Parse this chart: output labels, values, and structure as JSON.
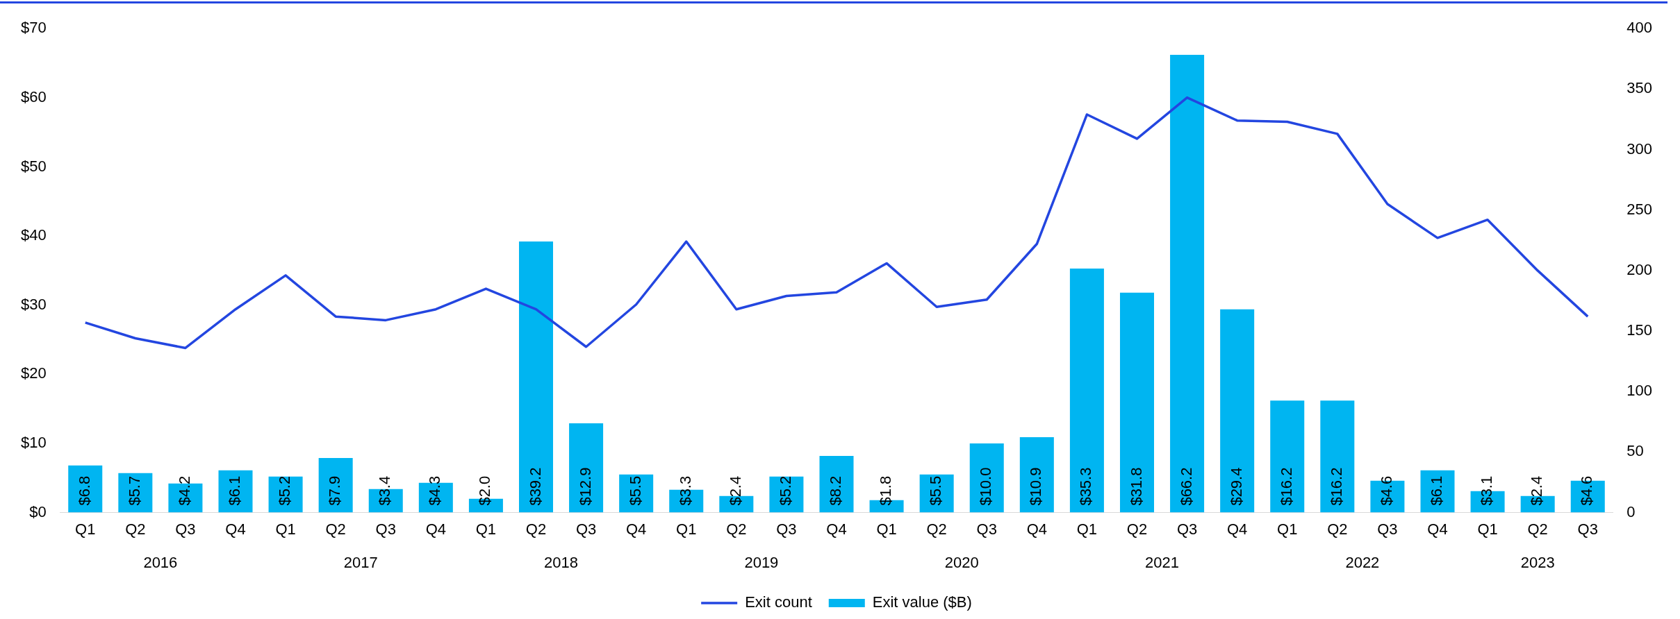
{
  "chart_data": {
    "type": "bar",
    "categories": [
      "Q1",
      "Q2",
      "Q3",
      "Q4",
      "Q1",
      "Q2",
      "Q3",
      "Q4",
      "Q1",
      "Q2",
      "Q3",
      "Q4",
      "Q1",
      "Q2",
      "Q3",
      "Q4",
      "Q1",
      "Q2",
      "Q3",
      "Q4",
      "Q1",
      "Q2",
      "Q3",
      "Q4",
      "Q1",
      "Q2",
      "Q3",
      "Q4",
      "Q1",
      "Q2",
      "Q3"
    ],
    "series": [
      {
        "name": "Exit value ($B)",
        "color": "#00b5f1",
        "values": [
          6.8,
          5.7,
          4.2,
          6.1,
          5.2,
          7.9,
          3.4,
          4.3,
          2.0,
          39.2,
          12.9,
          5.5,
          3.3,
          2.4,
          5.2,
          8.2,
          1.8,
          5.5,
          10.0,
          10.9,
          35.3,
          31.8,
          66.2,
          29.4,
          16.2,
          16.2,
          4.6,
          6.1,
          3.1,
          2.4,
          4.6
        ],
        "value_labels": [
          "$6.8",
          "$5.7",
          "$4.2",
          "$6.1",
          "$5.2",
          "$7.9",
          "$3.4",
          "$4.3",
          "$2.0",
          "$39.2",
          "$12.9",
          "$5.5",
          "$3.3",
          "$2.4",
          "$5.2",
          "$8.2",
          "$1.8",
          "$5.5",
          "$10.0",
          "$10.9",
          "$35.3",
          "$31.8",
          "$66.2",
          "$29.4",
          "$16.2",
          "$16.2",
          "$4.6",
          "$6.1",
          "$3.1",
          "$2.4",
          "$4.6"
        ]
      },
      {
        "name": "Exit count",
        "type": "line",
        "axis": "y2",
        "color": "#2346e0",
        "values": [
          157,
          144,
          136,
          168,
          196,
          162,
          159,
          168,
          185,
          168,
          137,
          172,
          224,
          168,
          179,
          182,
          206,
          170,
          176,
          222,
          329,
          309,
          343,
          324,
          323,
          313,
          255,
          227,
          242,
          200,
          162
        ]
      }
    ],
    "ylim": [
      0,
      70
    ],
    "yticks": [
      {
        "value": 0,
        "label": "$0"
      },
      {
        "value": 10,
        "label": "$10"
      },
      {
        "value": 20,
        "label": "$20"
      },
      {
        "value": 30,
        "label": "$30"
      },
      {
        "value": 40,
        "label": "$40"
      },
      {
        "value": 50,
        "label": "$50"
      },
      {
        "value": 60,
        "label": "$60"
      },
      {
        "value": 70,
        "label": "$70"
      }
    ],
    "y2lim": [
      0,
      400
    ],
    "y2ticks": [
      0,
      50,
      100,
      150,
      200,
      250,
      300,
      350,
      400
    ],
    "annotations": [
      "2016",
      "2017",
      "2018",
      "2019",
      "2020",
      "2021",
      "2022",
      "2023"
    ],
    "grid": false,
    "legend": "bottom",
    "marker": "none"
  }
}
